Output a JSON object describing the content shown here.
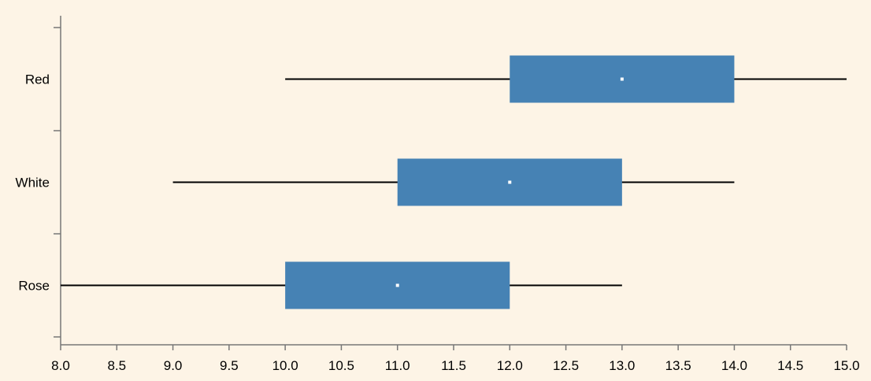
{
  "chart_data": {
    "type": "boxplot",
    "orientation": "horizontal",
    "title": "",
    "xlabel": "",
    "ylabel": "",
    "xlim": [
      8.0,
      15.0
    ],
    "x_ticks": [
      "8.0",
      "8.5",
      "9.0",
      "9.5",
      "10.0",
      "10.5",
      "11.0",
      "11.5",
      "12.0",
      "12.5",
      "13.0",
      "13.5",
      "14.0",
      "14.5",
      "15.0"
    ],
    "categories": [
      "Red",
      "White",
      "Rose"
    ],
    "boxes": [
      {
        "category": "Red",
        "min": 10.0,
        "q1": 12.0,
        "median": 13.0,
        "q3": 14.0,
        "max": 15.0
      },
      {
        "category": "White",
        "min": 9.0,
        "q1": 11.0,
        "median": 12.0,
        "q3": 13.0,
        "max": 14.0
      },
      {
        "category": "Rose",
        "min": 8.0,
        "q1": 10.0,
        "median": 11.0,
        "q3": 12.0,
        "max": 13.0
      }
    ],
    "box_color": "#4682b4",
    "median_color": "#ffffff",
    "whisker_color": "#000000",
    "background": "#fdf4e6",
    "grid": false,
    "legend": "none"
  }
}
